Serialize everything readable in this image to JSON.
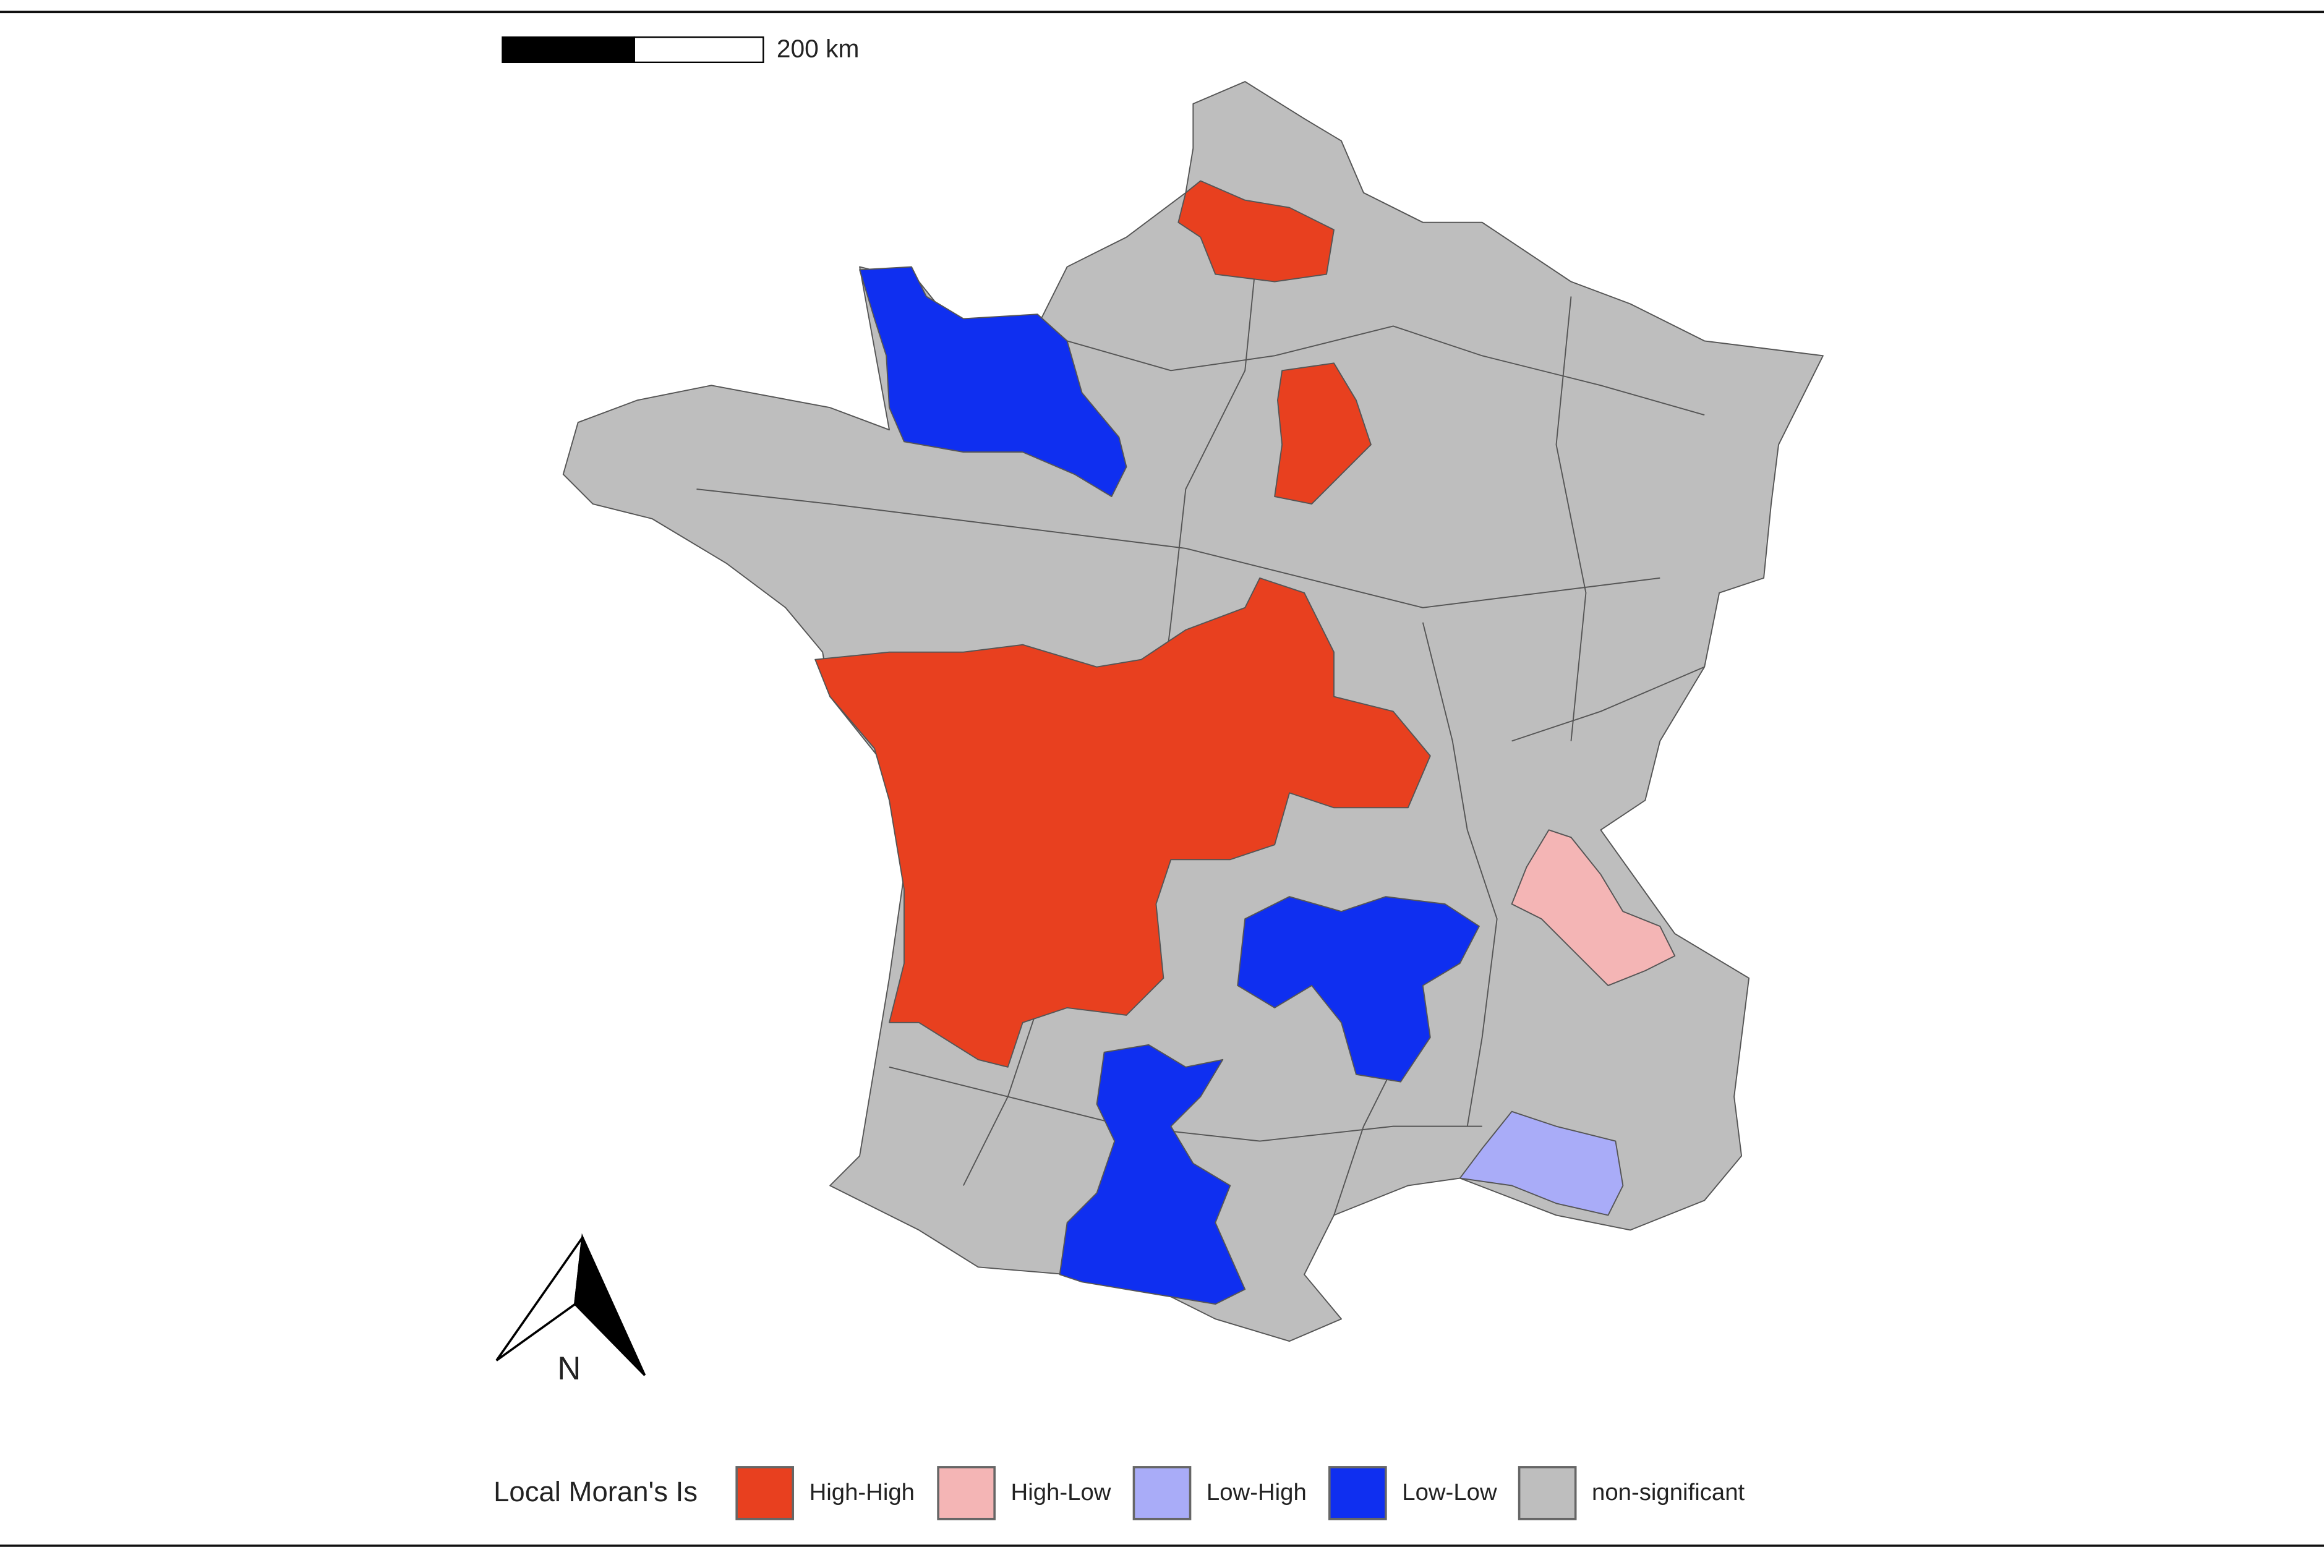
{
  "scale_bar": {
    "label": "200 km"
  },
  "north_arrow": {
    "label": "N"
  },
  "legend": {
    "title": "Local Moran's Is",
    "items": [
      {
        "label": "High-High",
        "color": "#e8401f"
      },
      {
        "label": "High-Low",
        "color": "#f4b5b5"
      },
      {
        "label": "Low-High",
        "color": "#a9acf8"
      },
      {
        "label": "Low-Low",
        "color": "#0f2ff0"
      },
      {
        "label": "non-significant",
        "color": "#bebebe"
      }
    ]
  }
}
